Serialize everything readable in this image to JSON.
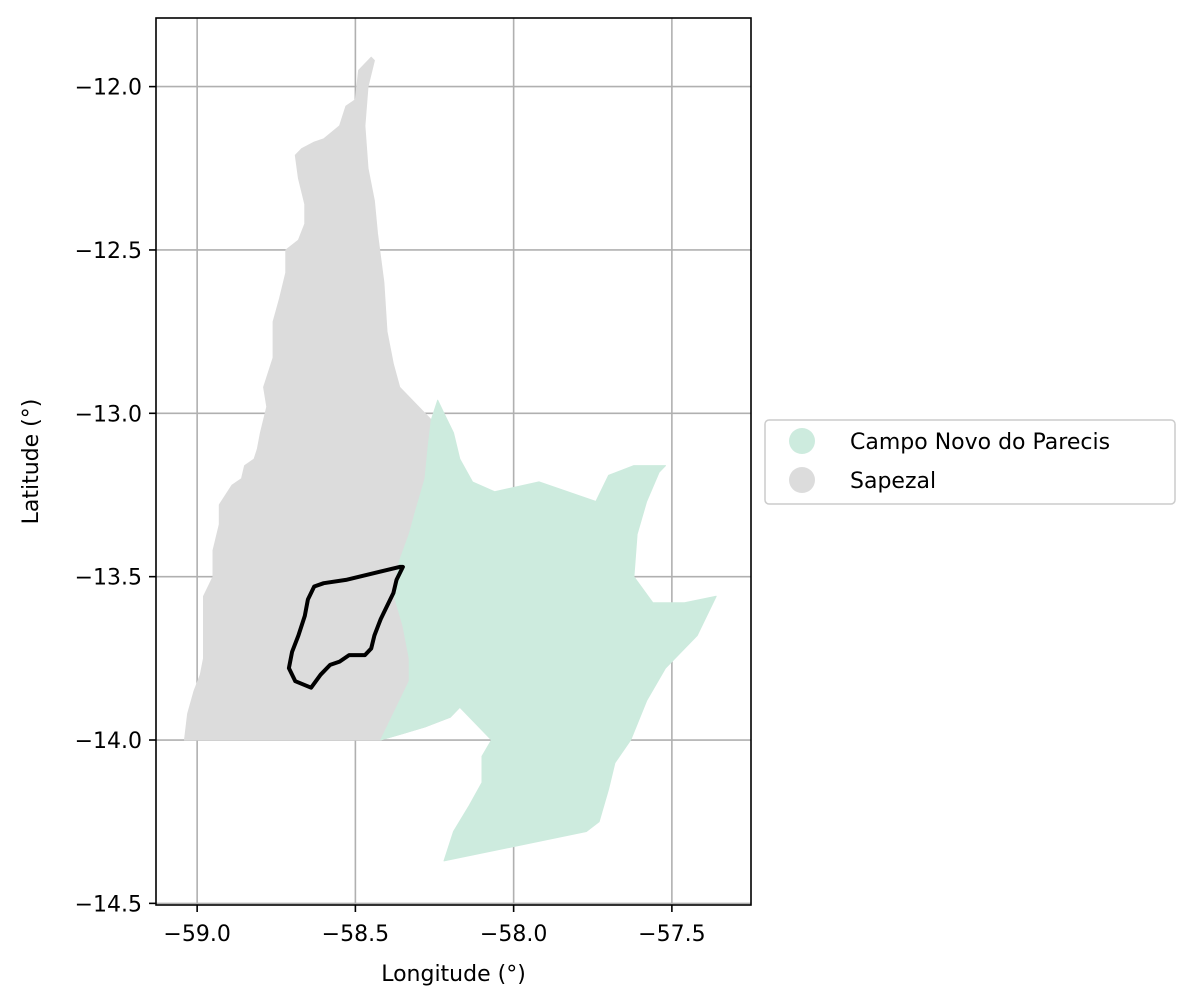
{
  "chart_data": {
    "type": "map",
    "xlabel": "Longitude (°)",
    "ylabel": "Latitude (°)",
    "xlim": [
      -59.13,
      -57.25
    ],
    "ylim": [
      -14.505,
      -11.79
    ],
    "grid": true,
    "x_ticks": [
      {
        "value": -59.0,
        "label": "−59.0"
      },
      {
        "value": -58.5,
        "label": "−58.5"
      },
      {
        "value": -58.0,
        "label": "−58.0"
      },
      {
        "value": -57.5,
        "label": "−57.5"
      }
    ],
    "y_ticks": [
      {
        "value": -12.0,
        "label": "−12.0"
      },
      {
        "value": -12.5,
        "label": "−12.5"
      },
      {
        "value": -13.0,
        "label": "−13.0"
      },
      {
        "value": -13.5,
        "label": "−13.5"
      },
      {
        "value": -14.0,
        "label": "−14.0"
      },
      {
        "value": -14.5,
        "label": "−14.5"
      }
    ],
    "legend": {
      "placement": "right-outside",
      "entries": [
        {
          "label": "Campo Novo do Parecis",
          "color": "#cdebde"
        },
        {
          "label": "Sapezal",
          "color": "#dcdcdc"
        }
      ]
    },
    "regions": [
      {
        "name": "Sapezal",
        "color": "#dcdcdc",
        "coords": [
          [
            -58.45,
            -11.91
          ],
          [
            -58.49,
            -11.95
          ],
          [
            -58.5,
            -12.04
          ],
          [
            -58.53,
            -12.06
          ],
          [
            -58.55,
            -12.12
          ],
          [
            -58.6,
            -12.16
          ],
          [
            -58.63,
            -12.17
          ],
          [
            -58.67,
            -12.19
          ],
          [
            -58.69,
            -12.21
          ],
          [
            -58.68,
            -12.28
          ],
          [
            -58.66,
            -12.36
          ],
          [
            -58.66,
            -12.42
          ],
          [
            -58.68,
            -12.47
          ],
          [
            -58.72,
            -12.5
          ],
          [
            -58.72,
            -12.57
          ],
          [
            -58.74,
            -12.65
          ],
          [
            -58.76,
            -12.72
          ],
          [
            -58.76,
            -12.83
          ],
          [
            -58.79,
            -12.92
          ],
          [
            -58.78,
            -12.98
          ],
          [
            -58.8,
            -13.06
          ],
          [
            -58.81,
            -13.11
          ],
          [
            -58.82,
            -13.14
          ],
          [
            -58.85,
            -13.16
          ],
          [
            -58.86,
            -13.2
          ],
          [
            -58.89,
            -13.22
          ],
          [
            -58.91,
            -13.25
          ],
          [
            -58.93,
            -13.28
          ],
          [
            -58.93,
            -13.34
          ],
          [
            -58.95,
            -13.42
          ],
          [
            -58.95,
            -13.5
          ],
          [
            -58.98,
            -13.56
          ],
          [
            -58.98,
            -13.65
          ],
          [
            -58.98,
            -13.75
          ],
          [
            -58.99,
            -13.8
          ],
          [
            -59.01,
            -13.85
          ],
          [
            -59.03,
            -13.92
          ],
          [
            -59.04,
            -14.0
          ],
          [
            -58.98,
            -14.0
          ],
          [
            -58.85,
            -14.0
          ],
          [
            -58.7,
            -14.0
          ],
          [
            -58.5,
            -14.0
          ],
          [
            -58.42,
            -14.0
          ],
          [
            -58.35,
            -13.98
          ],
          [
            -58.28,
            -13.96
          ],
          [
            -58.2,
            -13.93
          ],
          [
            -58.17,
            -13.9
          ],
          [
            -58.28,
            -13.85
          ],
          [
            -58.32,
            -13.8
          ],
          [
            -58.33,
            -13.75
          ],
          [
            -58.35,
            -13.65
          ],
          [
            -58.38,
            -13.55
          ],
          [
            -58.36,
            -13.45
          ],
          [
            -58.33,
            -13.37
          ],
          [
            -58.31,
            -13.3
          ],
          [
            -58.28,
            -13.2
          ],
          [
            -58.27,
            -13.1
          ],
          [
            -58.26,
            -13.02
          ],
          [
            -58.3,
            -12.98
          ],
          [
            -58.36,
            -12.92
          ],
          [
            -58.38,
            -12.85
          ],
          [
            -58.4,
            -12.75
          ],
          [
            -58.41,
            -12.6
          ],
          [
            -58.43,
            -12.45
          ],
          [
            -58.44,
            -12.35
          ],
          [
            -58.46,
            -12.25
          ],
          [
            -58.47,
            -12.12
          ],
          [
            -58.46,
            -12.0
          ],
          [
            -58.44,
            -11.92
          ]
        ]
      },
      {
        "name": "Campo Novo do Parecis",
        "color": "#cdebde",
        "coords": [
          [
            -58.26,
            -13.02
          ],
          [
            -58.24,
            -12.96
          ],
          [
            -58.22,
            -13.0
          ],
          [
            -58.19,
            -13.06
          ],
          [
            -58.17,
            -13.14
          ],
          [
            -58.13,
            -13.21
          ],
          [
            -58.06,
            -13.24
          ],
          [
            -57.92,
            -13.21
          ],
          [
            -57.74,
            -13.27
          ],
          [
            -57.7,
            -13.19
          ],
          [
            -57.62,
            -13.16
          ],
          [
            -57.52,
            -13.16
          ],
          [
            -57.54,
            -13.18
          ],
          [
            -57.58,
            -13.27
          ],
          [
            -57.61,
            -13.37
          ],
          [
            -57.62,
            -13.5
          ],
          [
            -57.56,
            -13.58
          ],
          [
            -57.46,
            -13.58
          ],
          [
            -57.36,
            -13.56
          ],
          [
            -57.42,
            -13.68
          ],
          [
            -57.52,
            -13.78
          ],
          [
            -57.58,
            -13.88
          ],
          [
            -57.63,
            -14.0
          ],
          [
            -57.68,
            -14.07
          ],
          [
            -57.7,
            -14.15
          ],
          [
            -57.73,
            -14.25
          ],
          [
            -57.77,
            -14.28
          ],
          [
            -58.22,
            -14.37
          ],
          [
            -58.19,
            -14.28
          ],
          [
            -58.14,
            -14.2
          ],
          [
            -58.1,
            -14.13
          ],
          [
            -58.1,
            -14.05
          ],
          [
            -58.07,
            -14.0
          ],
          [
            -58.17,
            -13.9
          ],
          [
            -58.2,
            -13.93
          ],
          [
            -58.28,
            -13.96
          ],
          [
            -58.35,
            -13.98
          ],
          [
            -58.42,
            -14.0
          ],
          [
            -58.38,
            -13.92
          ],
          [
            -58.33,
            -13.82
          ],
          [
            -58.33,
            -13.75
          ],
          [
            -58.35,
            -13.65
          ],
          [
            -58.38,
            -13.55
          ],
          [
            -58.36,
            -13.45
          ],
          [
            -58.33,
            -13.37
          ],
          [
            -58.31,
            -13.3
          ],
          [
            -58.28,
            -13.2
          ],
          [
            -58.27,
            -13.1
          ]
        ]
      }
    ],
    "outline": {
      "name": "study-area-boundary",
      "color": "#000000",
      "coords": [
        [
          -58.36,
          -13.47
        ],
        [
          -58.53,
          -13.51
        ],
        [
          -58.6,
          -13.52
        ],
        [
          -58.63,
          -13.53
        ],
        [
          -58.65,
          -13.57
        ],
        [
          -58.66,
          -13.62
        ],
        [
          -58.68,
          -13.68
        ],
        [
          -58.7,
          -13.73
        ],
        [
          -58.71,
          -13.78
        ],
        [
          -58.69,
          -13.82
        ],
        [
          -58.64,
          -13.84
        ],
        [
          -58.61,
          -13.8
        ],
        [
          -58.58,
          -13.77
        ],
        [
          -58.55,
          -13.76
        ],
        [
          -58.52,
          -13.74
        ],
        [
          -58.47,
          -13.74
        ],
        [
          -58.45,
          -13.72
        ],
        [
          -58.44,
          -13.68
        ],
        [
          -58.42,
          -13.63
        ],
        [
          -58.4,
          -13.59
        ],
        [
          -58.38,
          -13.55
        ],
        [
          -58.37,
          -13.51
        ],
        [
          -58.35,
          -13.47
        ]
      ]
    }
  }
}
